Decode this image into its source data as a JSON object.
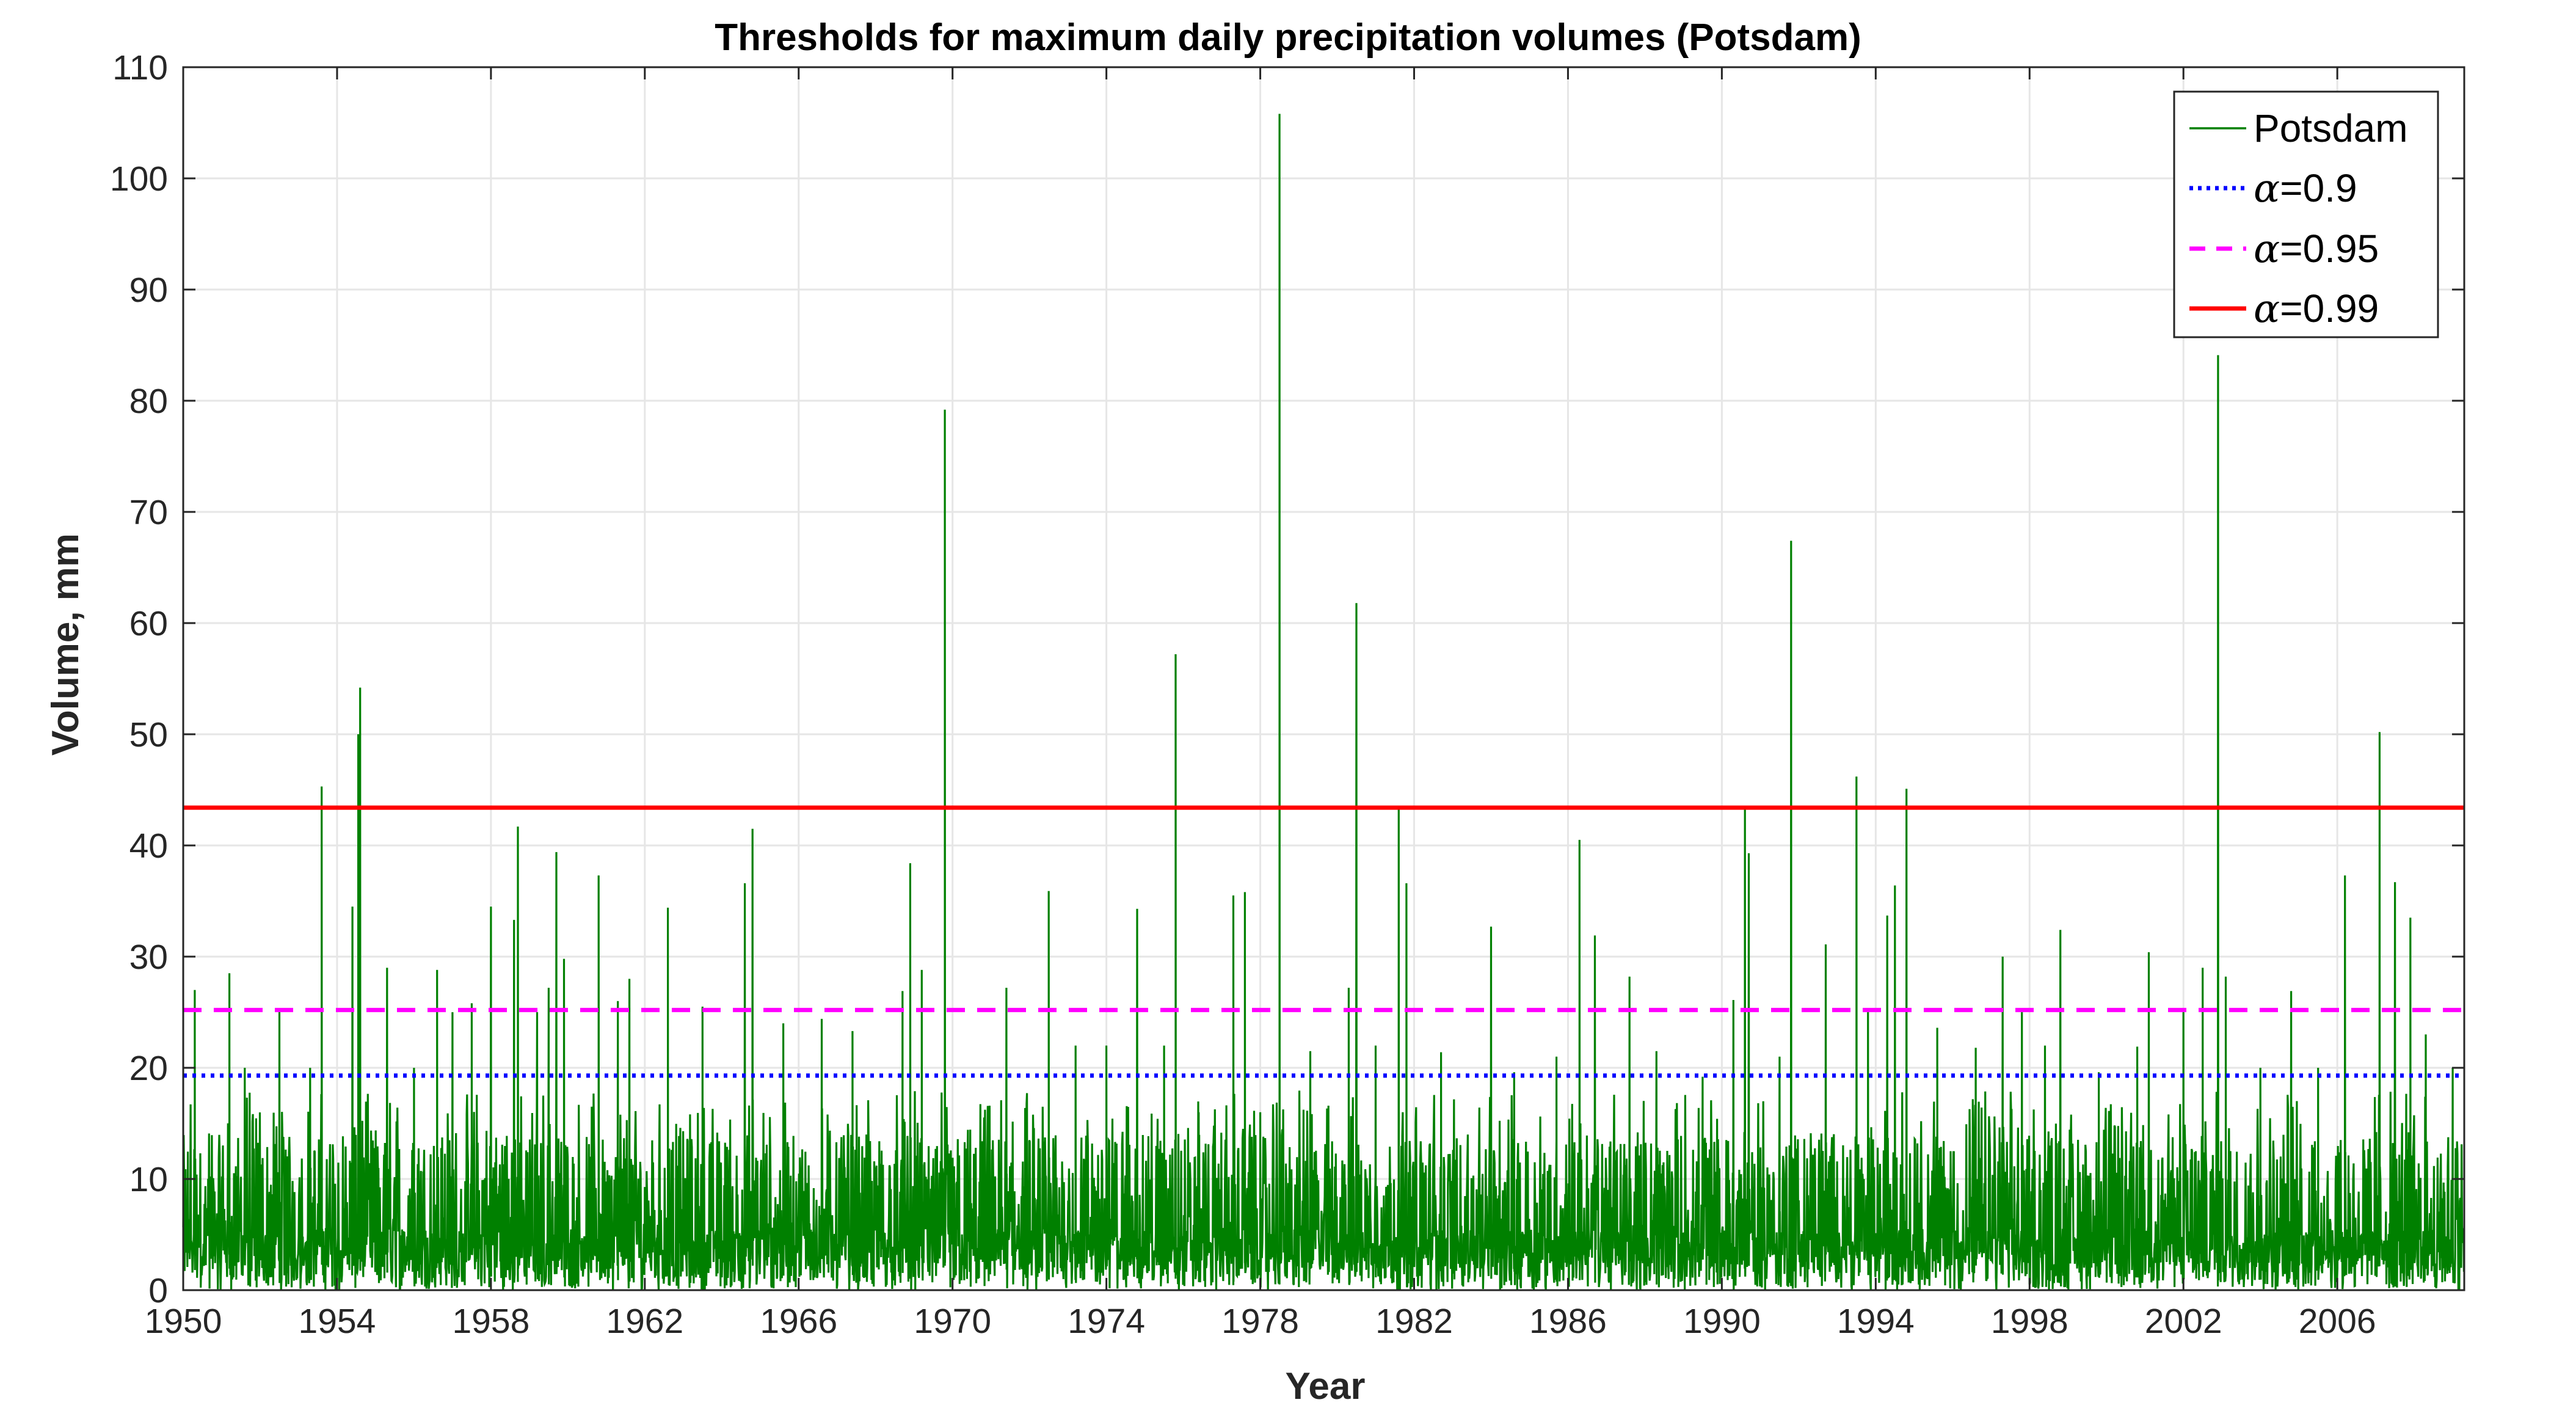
{
  "chart_data": {
    "type": "line",
    "title": "Thresholds for maximum daily precipitation volumes (Potsdam)",
    "xlabel": "Year",
    "ylabel": "Volume, mm",
    "xlim": [
      1950,
      2009.3
    ],
    "ylim": [
      0,
      110
    ],
    "grid": true,
    "legend_position": "top-right",
    "x_ticks": [
      "1950",
      "1954",
      "1958",
      "1962",
      "1966",
      "1970",
      "1974",
      "1978",
      "1982",
      "1986",
      "1990",
      "1994",
      "1998",
      "2002",
      "2006"
    ],
    "y_ticks": [
      "0",
      "10",
      "20",
      "30",
      "40",
      "50",
      "60",
      "70",
      "80",
      "90",
      "100",
      "110"
    ],
    "series": [
      {
        "name": "Potsdam",
        "color": "#008000",
        "style": "solid",
        "peaks": [
          [
            1950.3,
            27
          ],
          [
            1951.2,
            28.5
          ],
          [
            1951.6,
            20
          ],
          [
            1952.5,
            25
          ],
          [
            1953.3,
            20
          ],
          [
            1953.6,
            45.3
          ],
          [
            1954.4,
            34.5
          ],
          [
            1954.6,
            54.2
          ],
          [
            1954.55,
            50
          ],
          [
            1955.3,
            29
          ],
          [
            1956.0,
            20
          ],
          [
            1956.6,
            28.8
          ],
          [
            1957.0,
            25
          ],
          [
            1957.5,
            25.8
          ],
          [
            1958.0,
            34.5
          ],
          [
            1958.6,
            33.3
          ],
          [
            1958.7,
            41.7
          ],
          [
            1959.2,
            25
          ],
          [
            1959.5,
            27.2
          ],
          [
            1959.7,
            39.4
          ],
          [
            1959.9,
            29.8
          ],
          [
            1960.8,
            37.3
          ],
          [
            1961.3,
            26
          ],
          [
            1961.6,
            28
          ],
          [
            1962.6,
            34.4
          ],
          [
            1963.5,
            25.5
          ],
          [
            1964.6,
            36.6
          ],
          [
            1964.8,
            41.5
          ],
          [
            1965.6,
            24
          ],
          [
            1966.6,
            24.4
          ],
          [
            1967.4,
            23.3
          ],
          [
            1968.7,
            26.9
          ],
          [
            1968.9,
            38.4
          ],
          [
            1969.2,
            28.8
          ],
          [
            1969.8,
            79.2
          ],
          [
            1971.4,
            27.2
          ],
          [
            1972.5,
            35.9
          ],
          [
            1973.2,
            22
          ],
          [
            1974.0,
            22
          ],
          [
            1974.8,
            34.3
          ],
          [
            1975.5,
            22
          ],
          [
            1975.8,
            57.2
          ],
          [
            1976.4,
            16
          ],
          [
            1977.3,
            35.5
          ],
          [
            1977.6,
            35.8
          ],
          [
            1978.0,
            16
          ],
          [
            1978.5,
            105.8
          ],
          [
            1979.3,
            21.5
          ],
          [
            1980.3,
            27.2
          ],
          [
            1980.5,
            61.8
          ],
          [
            1981.0,
            22
          ],
          [
            1981.6,
            43.4
          ],
          [
            1981.8,
            36.6
          ],
          [
            1982.7,
            21.4
          ],
          [
            1984.0,
            32.7
          ],
          [
            1984.6,
            19.6
          ],
          [
            1985.7,
            21
          ],
          [
            1986.3,
            40.5
          ],
          [
            1986.7,
            31.9
          ],
          [
            1987.6,
            28.2
          ],
          [
            1988.3,
            21.5
          ],
          [
            1989.5,
            19.2
          ],
          [
            1990.3,
            26.1
          ],
          [
            1990.6,
            43.4
          ],
          [
            1990.7,
            39.3
          ],
          [
            1991.5,
            21
          ],
          [
            1991.8,
            67.4
          ],
          [
            1992.7,
            31.1
          ],
          [
            1993.5,
            46.2
          ],
          [
            1993.8,
            25
          ],
          [
            1994.3,
            33.7
          ],
          [
            1994.5,
            36.4
          ],
          [
            1994.8,
            45.1
          ],
          [
            1995.6,
            23.6
          ],
          [
            1996.6,
            21.8
          ],
          [
            1997.3,
            30
          ],
          [
            1997.8,
            25
          ],
          [
            1998.4,
            22
          ],
          [
            1998.8,
            32.4
          ],
          [
            1999.8,
            19.6
          ],
          [
            2000.8,
            21.9
          ],
          [
            2001.1,
            30.4
          ],
          [
            2002.0,
            25
          ],
          [
            2002.5,
            29
          ],
          [
            2002.9,
            84.1
          ],
          [
            2003.1,
            28.2
          ],
          [
            2004.0,
            20
          ],
          [
            2004.8,
            26.9
          ],
          [
            2005.5,
            20
          ],
          [
            2006.2,
            37.3
          ],
          [
            2007.1,
            50.2
          ],
          [
            2007.5,
            36.7
          ],
          [
            2007.9,
            33.5
          ],
          [
            2008.3,
            23
          ],
          [
            2009.0,
            20
          ]
        ]
      },
      {
        "name": "α=0.9",
        "value": 19.3,
        "color": "#0000ff",
        "style": "dotted"
      },
      {
        "name": "α=0.95",
        "value": 25.2,
        "color": "#ff00ff",
        "style": "dashed"
      },
      {
        "name": "α=0.99",
        "value": 43.4,
        "color": "#ff0000",
        "style": "solid"
      }
    ],
    "legend": [
      {
        "alpha": "α",
        "rest": "",
        "full": "Potsdam",
        "is_alpha": false
      },
      {
        "alpha": "α",
        "rest": "=0.9",
        "is_alpha": true
      },
      {
        "alpha": "α",
        "rest": "=0.95",
        "is_alpha": true
      },
      {
        "alpha": "α",
        "rest": "=0.99",
        "is_alpha": true
      }
    ]
  }
}
